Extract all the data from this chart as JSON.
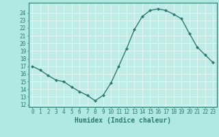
{
  "x": [
    0,
    1,
    2,
    3,
    4,
    5,
    6,
    7,
    8,
    9,
    10,
    11,
    12,
    13,
    14,
    15,
    16,
    17,
    18,
    19,
    20,
    21,
    22,
    23
  ],
  "y": [
    17.0,
    16.5,
    15.8,
    15.2,
    15.0,
    14.3,
    13.7,
    13.2,
    12.5,
    13.2,
    14.8,
    17.0,
    19.3,
    21.8,
    23.5,
    24.3,
    24.5,
    24.3,
    23.8,
    23.2,
    21.3,
    19.5,
    18.5,
    17.5
  ],
  "line_color": "#2d7a6e",
  "bg_color": "#b0e8e2",
  "grid_color": "#e8f8f6",
  "inner_bg": "#c0ece8",
  "xlabel": "Humidex (Indice chaleur)",
  "ylim_min": 12,
  "ylim_max": 25,
  "xlim_min": -0.5,
  "xlim_max": 23.5,
  "yticks": [
    12,
    13,
    14,
    15,
    16,
    17,
    18,
    19,
    20,
    21,
    22,
    23,
    24
  ],
  "xticks": [
    0,
    1,
    2,
    3,
    4,
    5,
    6,
    7,
    8,
    9,
    10,
    11,
    12,
    13,
    14,
    15,
    16,
    17,
    18,
    19,
    20,
    21,
    22,
    23
  ],
  "marker": "D",
  "marker_size": 2.0,
  "linewidth": 1.0,
  "xlabel_fontsize": 7.0,
  "tick_fontsize": 5.5
}
